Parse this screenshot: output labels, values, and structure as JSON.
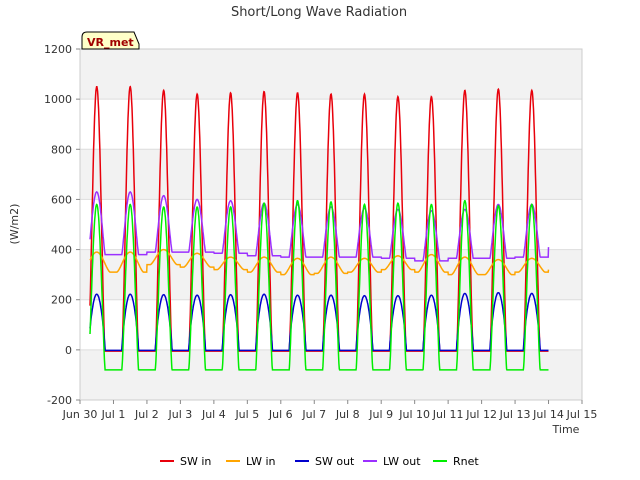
{
  "chart_data": {
    "type": "line",
    "title": "Short/Long Wave Radiation",
    "badge": "VR_met",
    "xlabel": "Time",
    "ylabel": "(W/m2)",
    "xlim": [
      0,
      15
    ],
    "ylim": [
      -200,
      1200
    ],
    "x_tick_positions": [
      0,
      1,
      2,
      3,
      4,
      5,
      6,
      7,
      8,
      9,
      10,
      11,
      12,
      13,
      14,
      15
    ],
    "x_tick_labels": [
      "Jun 30",
      "Jul 1",
      "Jul 2",
      "Jul 3",
      "Jul 4",
      "Jul 5",
      "Jul 6",
      "Jul 7",
      "Jul 8",
      "Jul 9",
      "Jul 10",
      "Jul 11",
      "Jul 12",
      "Jul 13",
      "Jul 14",
      "Jul 15"
    ],
    "y_ticks": [
      -200,
      0,
      200,
      400,
      600,
      800,
      1000,
      1200
    ],
    "grid": true,
    "legend_position": "bottom",
    "x_range_data": [
      0.3,
      14.0
    ],
    "daily_peaks": {
      "days": [
        "Jul 1",
        "Jul 2",
        "Jul 3",
        "Jul 4",
        "Jul 5",
        "Jul 6",
        "Jul 7",
        "Jul 8",
        "Jul 9",
        "Jul 10",
        "Jul 11",
        "Jul 12",
        "Jul 13",
        "Jul 14"
      ],
      "series": [
        {
          "name": "SW in",
          "color": "#e8000b",
          "night": -5,
          "peak": [
            1050,
            1035,
            1020,
            1025,
            1030,
            1025,
            1020,
            1020,
            1010,
            1010,
            1035,
            1040,
            1035,
            1030
          ]
        },
        {
          "name": "LW in",
          "color": "#ffa500",
          "night": [
            310,
            340,
            330,
            320,
            310,
            300,
            305,
            310,
            320,
            310,
            300,
            300,
            310,
            320
          ],
          "peak": [
            390,
            400,
            385,
            370,
            370,
            365,
            370,
            365,
            375,
            380,
            370,
            360,
            365,
            385
          ]
        },
        {
          "name": "SW out",
          "color": "#0000cc",
          "night": -2,
          "peak": [
            222,
            220,
            218,
            220,
            222,
            218,
            218,
            216,
            216,
            218,
            225,
            228,
            225,
            225
          ]
        },
        {
          "name": "LW out",
          "color": "#9b30ff",
          "night": [
            380,
            390,
            390,
            385,
            375,
            370,
            370,
            370,
            365,
            355,
            365,
            365,
            370,
            410
          ],
          "peak": [
            630,
            615,
            600,
            595,
            585,
            580,
            570,
            565,
            560,
            555,
            560,
            580,
            580,
            620
          ]
        },
        {
          "name": "Rnet",
          "color": "#00ee00",
          "night": -80,
          "peak": [
            580,
            570,
            570,
            570,
            585,
            595,
            590,
            580,
            585,
            580,
            595,
            575,
            580,
            570
          ]
        }
      ]
    }
  }
}
